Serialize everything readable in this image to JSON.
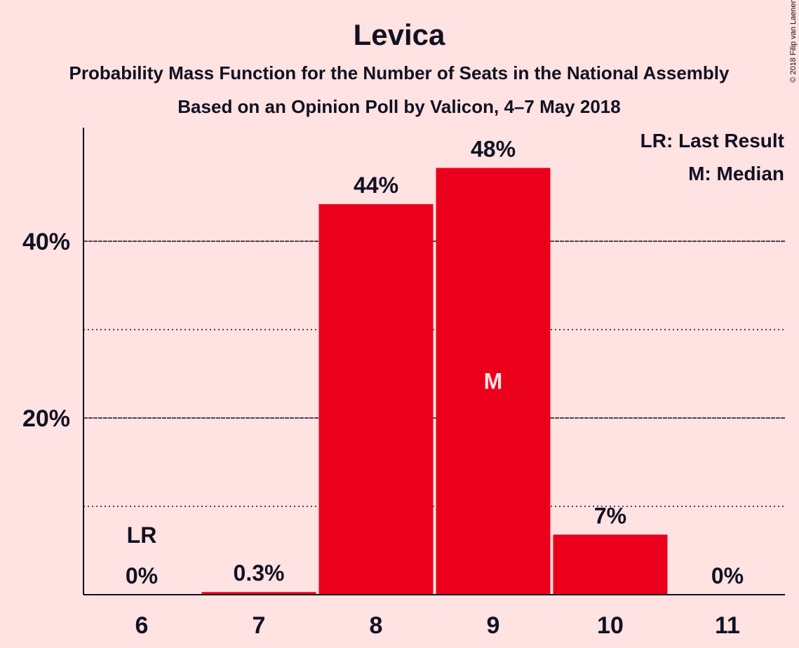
{
  "chart_data": {
    "type": "bar",
    "title": "Levica",
    "subtitle": "Probability Mass Function for the Number of Seats in the National Assembly",
    "subtitle2": "Based on an Opinion Poll by Valicon, 4–7 May 2018",
    "copyright": "© 2018 Filip van Laenen",
    "categories": [
      "6",
      "7",
      "8",
      "9",
      "10",
      "11"
    ],
    "values": [
      0,
      0.3,
      44.2,
      48.3,
      6.8,
      0
    ],
    "value_labels": [
      "0%",
      "0.3%",
      "44%",
      "48%",
      "7%",
      "0%"
    ],
    "ylim": [
      0,
      53
    ],
    "yticks": [
      {
        "value": 20,
        "label": "20%"
      },
      {
        "value": 40,
        "label": "40%"
      }
    ],
    "minor_gridlines": [
      10,
      30
    ],
    "last_result": {
      "category": "6",
      "label": "LR"
    },
    "median": {
      "category": "9",
      "label": "M"
    },
    "legend": [
      "LR: Last Result",
      "M: Median"
    ],
    "legend_position": "top-right",
    "colors": {
      "bar": "#eb001c",
      "background": "#ffe2e2",
      "text": "#111122",
      "median_label": "#ffe2e2"
    }
  }
}
